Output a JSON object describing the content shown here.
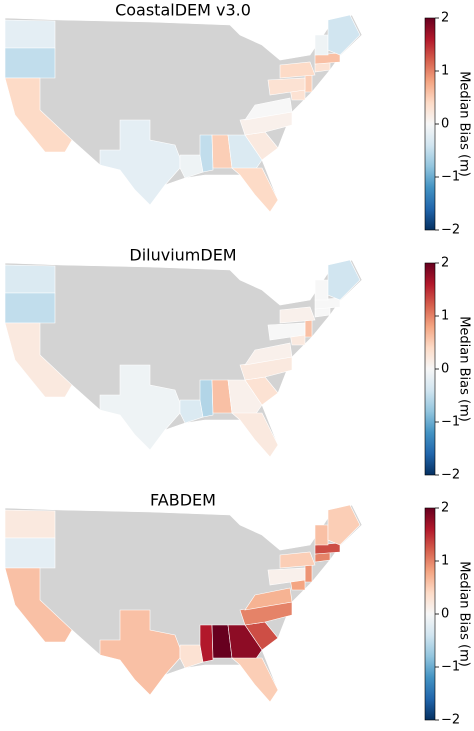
{
  "chart_data": [
    {
      "type": "choropleth",
      "title": "CoastalDEM v3.0",
      "colorbar_label": "Median Bias (m)",
      "clim": [
        -2,
        2
      ],
      "ticks": [
        {
          "value": 2,
          "label": "2"
        },
        {
          "value": 1,
          "label": "1"
        },
        {
          "value": 0,
          "label": "0"
        },
        {
          "value": -1,
          "label": "−1"
        },
        {
          "value": -2,
          "label": "−2"
        }
      ],
      "colors": [
        "#053061",
        "#2166ac",
        "#4393c3",
        "#92c5de",
        "#d1e5f0",
        "#f7f7f7",
        "#fddbc7",
        "#f4a582",
        "#d6604d",
        "#b2182b",
        "#67001f"
      ],
      "land_color": "#d3d3d3",
      "values": [
        -0.2,
        -0.5,
        0.4,
        -0.2,
        -0.1,
        -0.5,
        0.5,
        -0.3,
        0.4,
        0.2,
        0.1,
        0.0,
        0.3,
        0.5,
        0.4,
        0.3,
        0.6,
        -0.1,
        -0.4,
        0.3
      ]
    },
    {
      "type": "choropleth",
      "title": "DiluviumDEM",
      "colorbar_label": "Median Bias (m)",
      "clim": [
        -2,
        2
      ],
      "ticks": [
        {
          "value": 2,
          "label": "2"
        },
        {
          "value": 1,
          "label": "1"
        },
        {
          "value": 0,
          "label": "0"
        },
        {
          "value": -1,
          "label": "−1"
        },
        {
          "value": -2,
          "label": "−2"
        }
      ],
      "colors": [
        "#053061",
        "#2166ac",
        "#4393c3",
        "#92c5de",
        "#d1e5f0",
        "#f7f7f7",
        "#fddbc7",
        "#f4a582",
        "#d6604d",
        "#b2182b",
        "#67001f"
      ],
      "land_color": "#d3d3d3",
      "values": [
        -0.3,
        -0.5,
        0.2,
        -0.1,
        -0.3,
        -0.6,
        0.6,
        0.1,
        0.2,
        0.3,
        0.2,
        0.1,
        0.2,
        0.6,
        0.1,
        0.0,
        0.0,
        0.0,
        -0.4,
        0.0
      ]
    },
    {
      "type": "choropleth",
      "title": "FABDEM",
      "colorbar_label": "Median Bias (m)",
      "clim": [
        -2,
        2
      ],
      "ticks": [
        {
          "value": 2,
          "label": "2"
        },
        {
          "value": 1,
          "label": "1"
        },
        {
          "value": 0,
          "label": "0"
        },
        {
          "value": -1,
          "label": "−1"
        },
        {
          "value": -2,
          "label": "−2"
        }
      ],
      "colors": [
        "#053061",
        "#2166ac",
        "#4393c3",
        "#92c5de",
        "#d1e5f0",
        "#f7f7f7",
        "#fddbc7",
        "#f4a582",
        "#d6604d",
        "#b2182b",
        "#67001f"
      ],
      "land_color": "#d3d3d3",
      "values": [
        0.2,
        -0.2,
        0.6,
        0.6,
        0.3,
        1.6,
        2.0,
        1.8,
        0.5,
        1.3,
        1.0,
        0.7,
        0.8,
        0.9,
        0.5,
        1.0,
        1.3,
        0.6,
        0.5,
        0.1
      ]
    }
  ]
}
